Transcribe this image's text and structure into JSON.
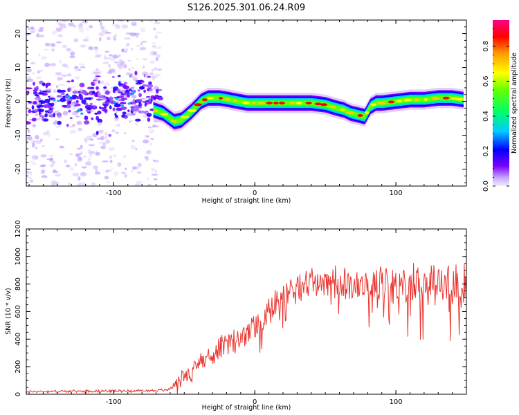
{
  "title": "S126.2025.301.06.24.R09",
  "chart_data": [
    {
      "type": "heatmap",
      "title": "S126.2025.301.06.24.R09",
      "xlabel": "Height of straight line (km)",
      "ylabel": "Frequency (Hz)",
      "xlim": [
        -162,
        150
      ],
      "ylim": [
        -25,
        24
      ],
      "xticks": [
        -100,
        0,
        100
      ],
      "xtick_labels": [
        "-100",
        "0",
        "100"
      ],
      "yticks": [
        -20,
        -10,
        0,
        10,
        20
      ],
      "ytick_labels": [
        "-20",
        "-10",
        "0",
        "10",
        "20"
      ],
      "colorbar": {
        "label": "Normalized spectral amplitude",
        "range": [
          0,
          0.95
        ],
        "ticks": [
          0.0,
          0.2,
          0.4,
          0.6,
          0.8
        ],
        "tick_labels": [
          "0.0",
          "0.2",
          "0.4",
          "0.6",
          "0.8"
        ]
      },
      "noise_region_x": [
        -162,
        -70
      ],
      "ridge_x": [
        -72,
        -65,
        -57,
        -52,
        -45,
        -38,
        -33,
        -25,
        -18,
        -12,
        -5,
        0,
        10,
        20,
        30,
        40,
        50,
        58,
        63,
        68,
        73,
        78,
        82,
        86,
        90,
        100,
        110,
        120,
        130,
        140,
        148
      ],
      "ridge_freq": [
        -2.5,
        -3.5,
        -6,
        -5.5,
        -3,
        0,
        1,
        1,
        0.5,
        0,
        -0.5,
        -0.5,
        -0.5,
        -0.5,
        -0.5,
        -0.5,
        -1,
        -2,
        -2.5,
        -3.5,
        -4,
        -4.5,
        -1.5,
        -0.5,
        -0.5,
        0,
        0.5,
        0.5,
        1,
        1,
        0.5
      ]
    },
    {
      "type": "line",
      "xlabel": "Height of straight line (km)",
      "ylabel": "SNR (10 * v/v)",
      "xlim": [
        -162,
        150
      ],
      "ylim": [
        0,
        1200
      ],
      "xticks": [
        -100,
        0,
        100
      ],
      "xtick_labels": [
        "-100",
        "0",
        "100"
      ],
      "yticks": [
        0,
        200,
        400,
        600,
        800,
        1000,
        1200
      ],
      "ytick_labels": [
        "0",
        "200",
        "400",
        "600",
        "800",
        "1000",
        "1200"
      ],
      "color": "#e8332e",
      "trend_x": [
        -162,
        -80,
        -62,
        -55,
        -45,
        -35,
        -25,
        -15,
        -5,
        5,
        12,
        18,
        25,
        35,
        50,
        65,
        80,
        100,
        120,
        140,
        150
      ],
      "trend_y": [
        20,
        25,
        30,
        80,
        180,
        270,
        330,
        380,
        440,
        520,
        620,
        700,
        760,
        800,
        820,
        810,
        800,
        790,
        790,
        790,
        800
      ],
      "spread_x": [
        -162,
        -62,
        -50,
        -30,
        0,
        20,
        50,
        70,
        90,
        120,
        150
      ],
      "spread_y": [
        8,
        10,
        60,
        80,
        100,
        110,
        110,
        130,
        150,
        170,
        170
      ]
    }
  ]
}
